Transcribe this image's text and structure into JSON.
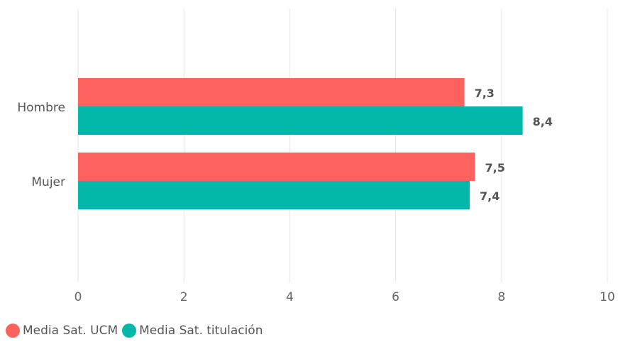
{
  "chart_data": {
    "type": "bar",
    "orientation": "horizontal",
    "categories": [
      "Hombre",
      "Mujer"
    ],
    "series": [
      {
        "name": "Media Sat. UCM",
        "values": [
          7.3,
          7.5
        ],
        "labels": [
          "7,3",
          "7,5"
        ],
        "color": "#fd625e"
      },
      {
        "name": "Media Sat. titulación",
        "values": [
          8.4,
          7.4
        ],
        "labels": [
          "8,4",
          "7,4"
        ],
        "color": "#01b8aa"
      }
    ],
    "x_ticks": [
      0,
      2,
      4,
      6,
      8,
      10
    ],
    "x_tick_labels": [
      "0",
      "2",
      "4",
      "6",
      "8",
      "10"
    ],
    "xlim": [
      0,
      10
    ],
    "grid": true,
    "legend_position": "bottom-left",
    "title": "",
    "xlabel": "",
    "ylabel": ""
  }
}
